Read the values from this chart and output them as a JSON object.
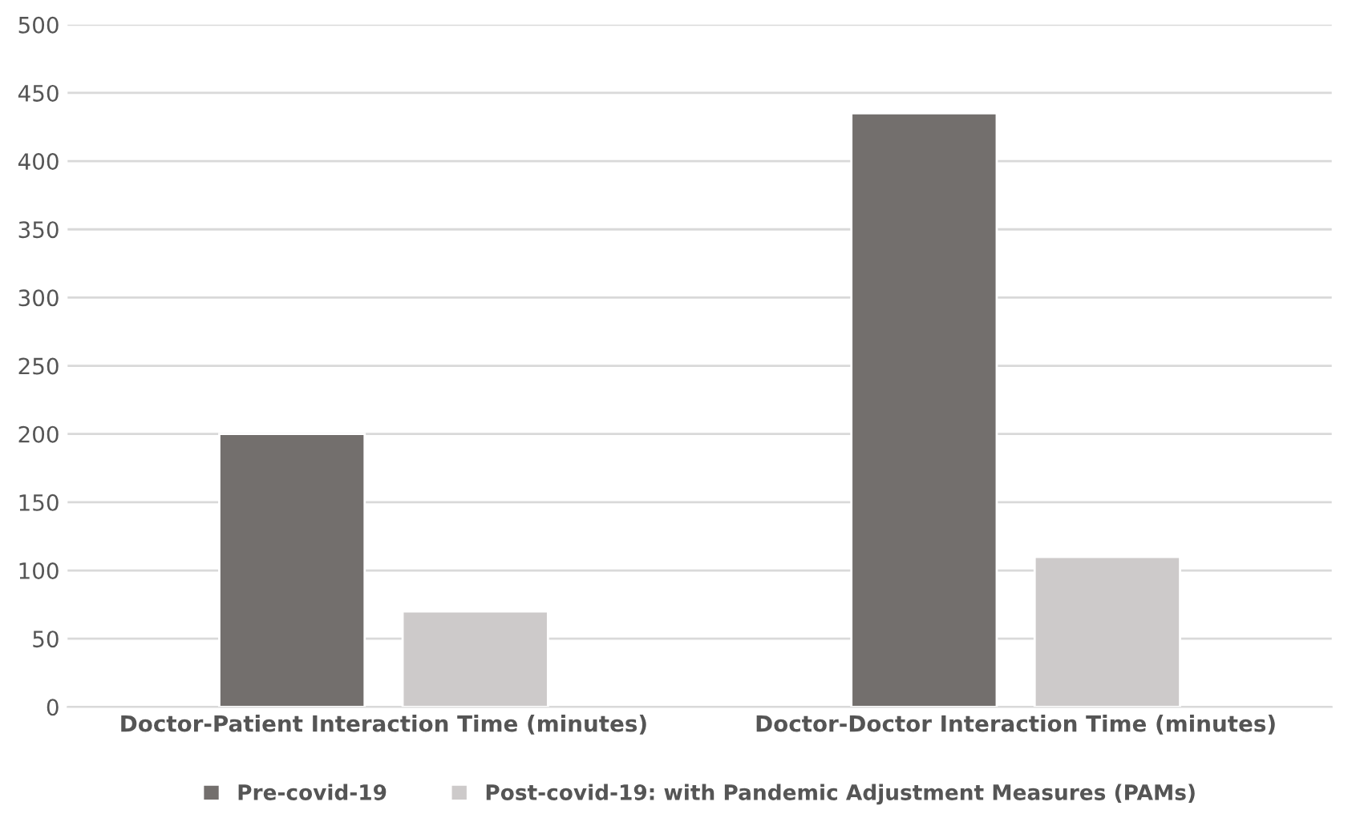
{
  "chart_data": {
    "type": "bar",
    "categories": [
      "Doctor-Patient Interaction Time (minutes)",
      "Doctor-Doctor Interaction Time (minutes)"
    ],
    "series": [
      {
        "name": "Pre-covid-19",
        "color": "#736f6d",
        "values": [
          200,
          435
        ]
      },
      {
        "name": "Post-covid-19: with Pandemic Adjustment Measures (PAMs)",
        "color": "#cdcaca",
        "values": [
          70,
          110
        ]
      }
    ],
    "ylim": [
      0,
      500
    ],
    "yticks": [
      0,
      50,
      100,
      150,
      200,
      250,
      300,
      350,
      400,
      450,
      500
    ],
    "grid": "y",
    "legend": "bottom"
  }
}
